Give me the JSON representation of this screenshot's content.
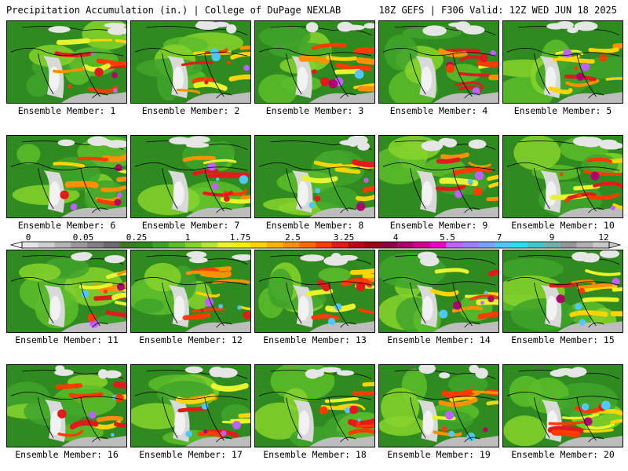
{
  "header": {
    "title_left": "Precipitation Accumulation (in.) | College of DuPage NEXLAB",
    "title_right": "18Z GEFS | F306 Valid: 12Z WED JUN 18 2025"
  },
  "member_label_prefix": "Ensemble Member: ",
  "members": [
    "Ensemble Member: 1",
    "Ensemble Member: 2",
    "Ensemble Member: 3",
    "Ensemble Member: 4",
    "Ensemble Member: 5",
    "Ensemble Member: 6",
    "Ensemble Member: 7",
    "Ensemble Member: 8",
    "Ensemble Member: 9",
    "Ensemble Member: 10",
    "Ensemble Member: 11",
    "Ensemble Member: 12",
    "Ensemble Member: 13",
    "Ensemble Member: 14",
    "Ensemble Member: 15",
    "Ensemble Member: 16",
    "Ensemble Member: 17",
    "Ensemble Member: 18",
    "Ensemble Member: 19",
    "Ensemble Member: 20"
  ],
  "colorbar": {
    "labels": [
      "0",
      "0.05",
      "0.25",
      "1",
      "1.75",
      "2.5",
      "3.25",
      "4",
      "5.5",
      "7",
      "9",
      "12"
    ],
    "colors": [
      "#e6e6e6",
      "#cfcfcf",
      "#b4b4b4",
      "#9a9a9a",
      "#808080",
      "#6a6a6a",
      "#3c7a2a",
      "#2e8b1e",
      "#3fa32a",
      "#5cbd2a",
      "#86d32c",
      "#b7e62e",
      "#e8f52e",
      "#ffee00",
      "#ffd400",
      "#ffb300",
      "#ff9100",
      "#ff6a00",
      "#ff3c00",
      "#e31a1c",
      "#c00018",
      "#a00014",
      "#8b0045",
      "#b0006e",
      "#d4008f",
      "#f000c8",
      "#c060ff",
      "#9a80ff",
      "#7aa0ff",
      "#50c8ff",
      "#28e0f0",
      "#40c8c8",
      "#70b0b0",
      "#909898",
      "#b0b0b0",
      "#c8c8c8"
    ]
  }
}
